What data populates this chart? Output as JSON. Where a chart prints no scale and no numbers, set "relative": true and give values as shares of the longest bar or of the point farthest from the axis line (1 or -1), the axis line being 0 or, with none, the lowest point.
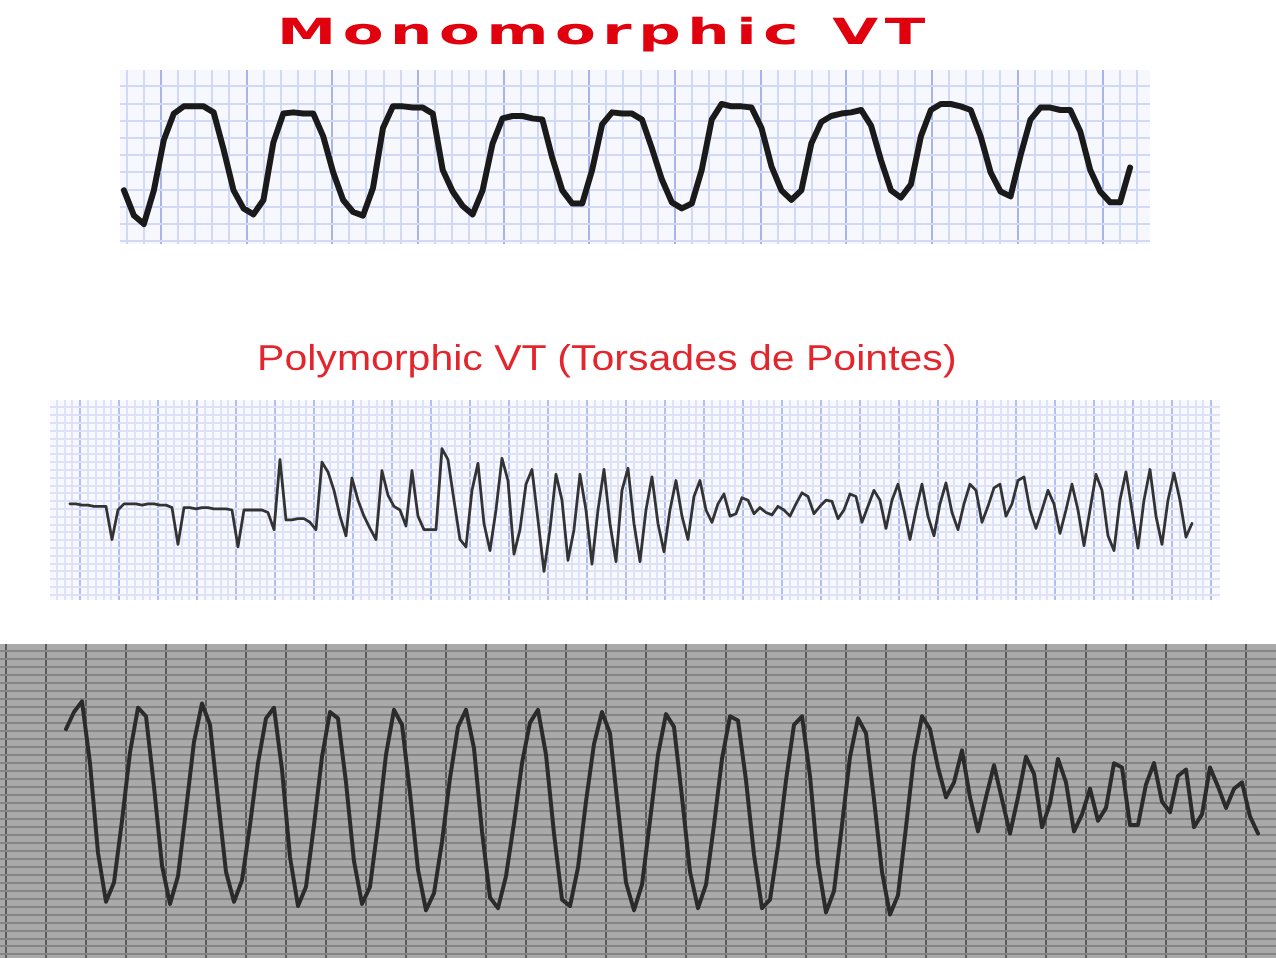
{
  "chart_data": [
    {
      "type": "line",
      "title": "Monomorphic VT",
      "relative": true,
      "grid": true,
      "categories": [
        null,
        null,
        null,
        null,
        null,
        null,
        null,
        null,
        null,
        null,
        null,
        null,
        null,
        null,
        null,
        null,
        null,
        null,
        null,
        null,
        null,
        null,
        null,
        null,
        null,
        null,
        null,
        null,
        null,
        null,
        null,
        null,
        null,
        null,
        null,
        null,
        null,
        null,
        null,
        null,
        null,
        null,
        null,
        null,
        null,
        null,
        null,
        null,
        null,
        null,
        null,
        null,
        null,
        null,
        null,
        null,
        null,
        null,
        null,
        null,
        null,
        null,
        null,
        null,
        null,
        null,
        null,
        null,
        null,
        null,
        null,
        null,
        null,
        null,
        null,
        null,
        null,
        null,
        null,
        null,
        null,
        null,
        null,
        null,
        null,
        null,
        null,
        null,
        null,
        null,
        null,
        null,
        null,
        null,
        null,
        null,
        null,
        null,
        null,
        null,
        null,
        null
      ],
      "series": [
        {
          "color": "#1a1a1a",
          "values": [
            0.28,
            0.07,
            0,
            0.28,
            0.7,
            0.92,
            0.98,
            0.98,
            0.98,
            0.93,
            0.62,
            0.28,
            0.13,
            0.08,
            0.2,
            0.68,
            0.92,
            0.93,
            0.92,
            0.92,
            0.73,
            0.43,
            0.2,
            0.1,
            0.07,
            0.3,
            0.8,
            0.98,
            0.98,
            0.97,
            0.97,
            0.92,
            0.45,
            0.27,
            0.15,
            0.08,
            0.28,
            0.67,
            0.88,
            0.9,
            0.9,
            0.88,
            0.87,
            0.55,
            0.28,
            0.17,
            0.17,
            0.45,
            0.83,
            0.93,
            0.92,
            0.92,
            0.87,
            0.63,
            0.37,
            0.18,
            0.13,
            0.17,
            0.45,
            0.87,
            1,
            0.98,
            0.98,
            0.97,
            0.8,
            0.48,
            0.28,
            0.2,
            0.28,
            0.67,
            0.85,
            0.9,
            0.92,
            0.93,
            0.95,
            0.82,
            0.53,
            0.28,
            0.22,
            0.33,
            0.73,
            0.95,
            1,
            1,
            0.98,
            0.95,
            0.73,
            0.43,
            0.27,
            0.23,
            0.57,
            0.87,
            0.97,
            0.97,
            0.95,
            0.95,
            0.77,
            0.45,
            0.27,
            0.18,
            0.18,
            0.47
          ]
        }
      ]
    },
    {
      "type": "line",
      "title": "Polymorphic VT (Torsades de Pointes)",
      "relative": true,
      "grid": true,
      "categories": [
        null,
        null,
        null,
        null,
        null,
        null,
        null,
        null,
        null,
        null,
        null,
        null,
        null,
        null,
        null,
        null,
        null,
        null,
        null,
        null,
        null,
        null,
        null,
        null,
        null,
        null,
        null,
        null,
        null,
        null,
        null,
        null,
        null,
        null,
        null,
        null,
        null,
        null,
        null,
        null,
        null,
        null,
        null,
        null,
        null,
        null,
        null,
        null,
        null,
        null,
        null,
        null,
        null,
        null,
        null,
        null,
        null,
        null,
        null,
        null,
        null,
        null,
        null,
        null,
        null,
        null,
        null,
        null,
        null,
        null,
        null,
        null,
        null,
        null,
        null,
        null,
        null,
        null,
        null,
        null,
        null,
        null,
        null,
        null,
        null,
        null,
        null,
        null,
        null,
        null,
        null,
        null,
        null,
        null,
        null,
        null,
        null,
        null,
        null,
        null,
        null,
        null,
        null,
        null,
        null,
        null,
        null,
        null,
        null,
        null,
        null,
        null,
        null,
        null,
        null,
        null,
        null,
        null,
        null,
        null,
        null,
        null,
        null,
        null,
        null,
        null,
        null,
        null,
        null,
        null,
        null,
        null,
        null,
        null,
        null,
        null,
        null,
        null,
        null,
        null,
        null,
        null,
        null,
        null,
        null,
        null,
        null,
        null,
        null,
        null,
        null,
        null,
        null,
        null,
        null,
        null,
        null,
        null,
        null,
        null,
        null,
        null,
        null,
        null,
        null,
        null,
        null,
        null,
        null,
        null,
        null,
        null,
        null,
        null,
        null,
        null,
        null,
        null,
        null,
        null,
        null,
        null,
        null,
        null,
        null,
        null,
        null,
        null
      ],
      "series": [
        {
          "color": "#333333",
          "values": [
            0.55,
            0.55,
            0.54,
            0.54,
            0.53,
            0.53,
            0.53,
            0.26,
            0.5,
            0.55,
            0.55,
            0.55,
            0.54,
            0.55,
            0.55,
            0.54,
            0.54,
            0.52,
            0.22,
            0.52,
            0.52,
            0.51,
            0.52,
            0.52,
            0.51,
            0.51,
            0.51,
            0.5,
            0.2,
            0.5,
            0.5,
            0.5,
            0.5,
            0.48,
            0.34,
            0.91,
            0.42,
            0.42,
            0.43,
            0.43,
            0.4,
            0.34,
            0.89,
            0.81,
            0.66,
            0.45,
            0.29,
            0.76,
            0.58,
            0.45,
            0.35,
            0.26,
            0.82,
            0.62,
            0.53,
            0.5,
            0.37,
            0.82,
            0.45,
            0.34,
            0.34,
            0.34,
            1,
            0.91,
            0.58,
            0.26,
            0.2,
            0.66,
            0.88,
            0.39,
            0.17,
            0.5,
            0.92,
            0.74,
            0.14,
            0.34,
            0.71,
            0.83,
            0.42,
            0,
            0.34,
            0.79,
            0.58,
            0.09,
            0.34,
            0.79,
            0.5,
            0.06,
            0.5,
            0.83,
            0.39,
            0.08,
            0.66,
            0.84,
            0.39,
            0.08,
            0.5,
            0.77,
            0.39,
            0.16,
            0.5,
            0.74,
            0.45,
            0.26,
            0.61,
            0.74,
            0.5,
            0.4,
            0.55,
            0.63,
            0.45,
            0.47,
            0.6,
            0.58,
            0.47,
            0.52,
            0.48,
            0.46,
            0.53,
            0.5,
            0.45,
            0.55,
            0.64,
            0.61,
            0.47,
            0.53,
            0.58,
            0.57,
            0.43,
            0.5,
            0.63,
            0.61,
            0.4,
            0.53,
            0.66,
            0.58,
            0.35,
            0.58,
            0.71,
            0.5,
            0.26,
            0.5,
            0.71,
            0.45,
            0.29,
            0.55,
            0.72,
            0.48,
            0.34,
            0.55,
            0.71,
            0.66,
            0.4,
            0.53,
            0.68,
            0.71,
            0.45,
            0.55,
            0.74,
            0.77,
            0.5,
            0.35,
            0.5,
            0.66,
            0.55,
            0.31,
            0.5,
            0.71,
            0.5,
            0.21,
            0.5,
            0.79,
            0.66,
            0.29,
            0.17,
            0.58,
            0.81,
            0.5,
            0.19,
            0.58,
            0.83,
            0.45,
            0.22,
            0.58,
            0.8,
            0.58,
            0.28,
            0.39
          ]
        }
      ]
    },
    {
      "type": "line",
      "relative": true,
      "grid": true,
      "categories": [
        null,
        null,
        null,
        null,
        null,
        null,
        null,
        null,
        null,
        null,
        null,
        null,
        null,
        null,
        null,
        null,
        null,
        null,
        null,
        null,
        null,
        null,
        null,
        null,
        null,
        null,
        null,
        null,
        null,
        null,
        null,
        null,
        null,
        null,
        null,
        null,
        null,
        null,
        null,
        null,
        null,
        null,
        null,
        null,
        null,
        null,
        null,
        null,
        null,
        null,
        null,
        null,
        null,
        null,
        null,
        null,
        null,
        null,
        null,
        null,
        null,
        null,
        null,
        null,
        null,
        null,
        null,
        null,
        null,
        null,
        null,
        null,
        null,
        null,
        null,
        null,
        null,
        null,
        null,
        null,
        null,
        null,
        null,
        null,
        null,
        null,
        null,
        null,
        null,
        null,
        null,
        null,
        null,
        null,
        null,
        null,
        null,
        null,
        null,
        null,
        null,
        null,
        null,
        null,
        null,
        null,
        null,
        null,
        null,
        null,
        null,
        null,
        null,
        null,
        null,
        null,
        null,
        null,
        null,
        null,
        null,
        null,
        null,
        null,
        null,
        null,
        null,
        null,
        null,
        null,
        null,
        null,
        null,
        null,
        null,
        null,
        null,
        null,
        null,
        null,
        null,
        null,
        null,
        null,
        null,
        null,
        null,
        null,
        null,
        null
      ],
      "series": [
        {
          "color": "#2b2b2b",
          "values": [
            0.87,
            0.95,
            1,
            0.71,
            0.29,
            0.06,
            0.15,
            0.44,
            0.76,
            0.97,
            0.93,
            0.6,
            0.23,
            0.05,
            0.18,
            0.49,
            0.81,
            0.99,
            0.89,
            0.54,
            0.2,
            0.06,
            0.16,
            0.42,
            0.71,
            0.92,
            0.97,
            0.68,
            0.27,
            0.04,
            0.13,
            0.42,
            0.74,
            0.95,
            0.92,
            0.62,
            0.25,
            0.05,
            0.13,
            0.42,
            0.75,
            0.96,
            0.89,
            0.57,
            0.21,
            0.02,
            0.1,
            0.34,
            0.64,
            0.88,
            0.96,
            0.78,
            0.39,
            0.08,
            0.03,
            0.18,
            0.43,
            0.71,
            0.9,
            0.96,
            0.75,
            0.38,
            0.07,
            0.04,
            0.22,
            0.53,
            0.8,
            0.95,
            0.85,
            0.5,
            0.15,
            0.02,
            0.14,
            0.44,
            0.75,
            0.94,
            0.88,
            0.55,
            0.2,
            0.03,
            0.14,
            0.42,
            0.73,
            0.93,
            0.91,
            0.63,
            0.28,
            0.03,
            0.07,
            0.32,
            0.63,
            0.89,
            0.93,
            0.65,
            0.24,
            0.01,
            0.11,
            0.42,
            0.74,
            0.92,
            0.85,
            0.54,
            0.2,
            0,
            0.09,
            0.41,
            0.74,
            0.93,
            0.87,
            0.69,
            0.55,
            0.62,
            0.77,
            0.55,
            0.39,
            0.55,
            0.7,
            0.54,
            0.38,
            0.55,
            0.74,
            0.66,
            0.41,
            0.52,
            0.73,
            0.62,
            0.39,
            0.47,
            0.59,
            0.44,
            0.5,
            0.71,
            0.69,
            0.42,
            0.42,
            0.61,
            0.71,
            0.53,
            0.48,
            0.65,
            0.68,
            0.41,
            0.47,
            0.69,
            0.6,
            0.5,
            0.59,
            0.62,
            0.46,
            0.38
          ]
        }
      ]
    }
  ]
}
